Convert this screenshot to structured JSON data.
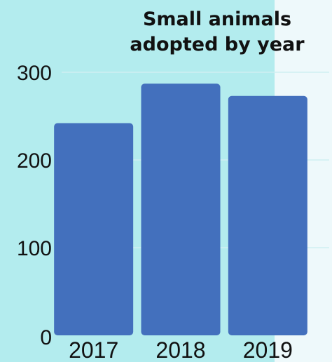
{
  "chart_data": {
    "type": "bar",
    "title_lines": [
      "Small animals",
      "adopted by year"
    ],
    "categories": [
      "2017",
      "2018",
      "2019"
    ],
    "values": [
      242,
      287,
      273
    ],
    "ylim": [
      0,
      300
    ],
    "yticks": [
      "0",
      "100",
      "200",
      "300"
    ],
    "xlabel": "",
    "ylabel": "",
    "grid": true,
    "colors": {
      "bar": "#4370bd",
      "background": "#b3ecee",
      "grid": "#cfeff2"
    }
  }
}
